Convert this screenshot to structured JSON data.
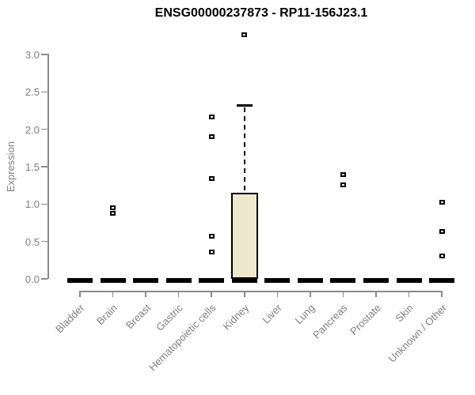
{
  "chart_data": {
    "type": "boxplot",
    "title": "ENSG00000237873 - RP11-156J23.1",
    "ylabel": "Expression",
    "xlabel": "",
    "ylim": [
      0.0,
      3.3
    ],
    "yticks": [
      "0.0",
      "0.5",
      "1.0",
      "1.5",
      "2.0",
      "2.5",
      "3.0"
    ],
    "grid": false,
    "legend": null,
    "outlier_marker": "open-square",
    "categories": [
      "Bladder",
      "Brain",
      "Breast",
      "Gastric",
      "Hematopoietic cells",
      "Kidney",
      "Liver",
      "Lung",
      "Pancreas",
      "Prostate",
      "Skin",
      "Unknown / Other"
    ],
    "series": [
      {
        "category": "Bladder",
        "q1": 0,
        "median": 0,
        "q3": 0,
        "whisker_low": 0,
        "whisker_high": 0,
        "outliers": []
      },
      {
        "category": "Brain",
        "q1": 0,
        "median": 0,
        "q3": 0,
        "whisker_low": 0,
        "whisker_high": 0,
        "outliers": [
          0.88,
          0.95
        ]
      },
      {
        "category": "Breast",
        "q1": 0,
        "median": 0,
        "q3": 0,
        "whisker_low": 0,
        "whisker_high": 0,
        "outliers": []
      },
      {
        "category": "Gastric",
        "q1": 0,
        "median": 0,
        "q3": 0,
        "whisker_low": 0,
        "whisker_high": 0,
        "outliers": []
      },
      {
        "category": "Hematopoietic cells",
        "q1": 0,
        "median": 0,
        "q3": 0,
        "whisker_low": 0,
        "whisker_high": 0,
        "outliers": [
          0.36,
          0.57,
          1.34,
          1.9,
          2.16
        ]
      },
      {
        "category": "Kidney",
        "q1": 0,
        "median": 0.02,
        "q3": 1.15,
        "whisker_low": 0,
        "whisker_high": 2.32,
        "outliers": [
          3.26
        ]
      },
      {
        "category": "Liver",
        "q1": 0,
        "median": 0,
        "q3": 0,
        "whisker_low": 0,
        "whisker_high": 0,
        "outliers": []
      },
      {
        "category": "Lung",
        "q1": 0,
        "median": 0,
        "q3": 0,
        "whisker_low": 0,
        "whisker_high": 0,
        "outliers": []
      },
      {
        "category": "Pancreas",
        "q1": 0,
        "median": 0,
        "q3": 0,
        "whisker_low": 0,
        "whisker_high": 0,
        "outliers": [
          1.26,
          1.39
        ]
      },
      {
        "category": "Prostate",
        "q1": 0,
        "median": 0,
        "q3": 0,
        "whisker_low": 0,
        "whisker_high": 0,
        "outliers": []
      },
      {
        "category": "Skin",
        "q1": 0,
        "median": 0,
        "q3": 0,
        "whisker_low": 0,
        "whisker_high": 0,
        "outliers": []
      },
      {
        "category": "Unknown / Other",
        "q1": 0,
        "median": 0,
        "q3": 0,
        "whisker_low": 0,
        "whisker_high": 0,
        "outliers": [
          0.31,
          0.63,
          1.02
        ]
      }
    ]
  },
  "colors": {
    "box_fill": "#EEE8CD",
    "box_border": "#000000",
    "median": "#000000",
    "whisker": "#000000",
    "outlier_border": "#000000",
    "outlier_fill": "#FFFFFF",
    "axis": "#8A8A8A",
    "tick_label": "#7F7F7F",
    "title": "#000000",
    "background": "#FFFFFF"
  }
}
